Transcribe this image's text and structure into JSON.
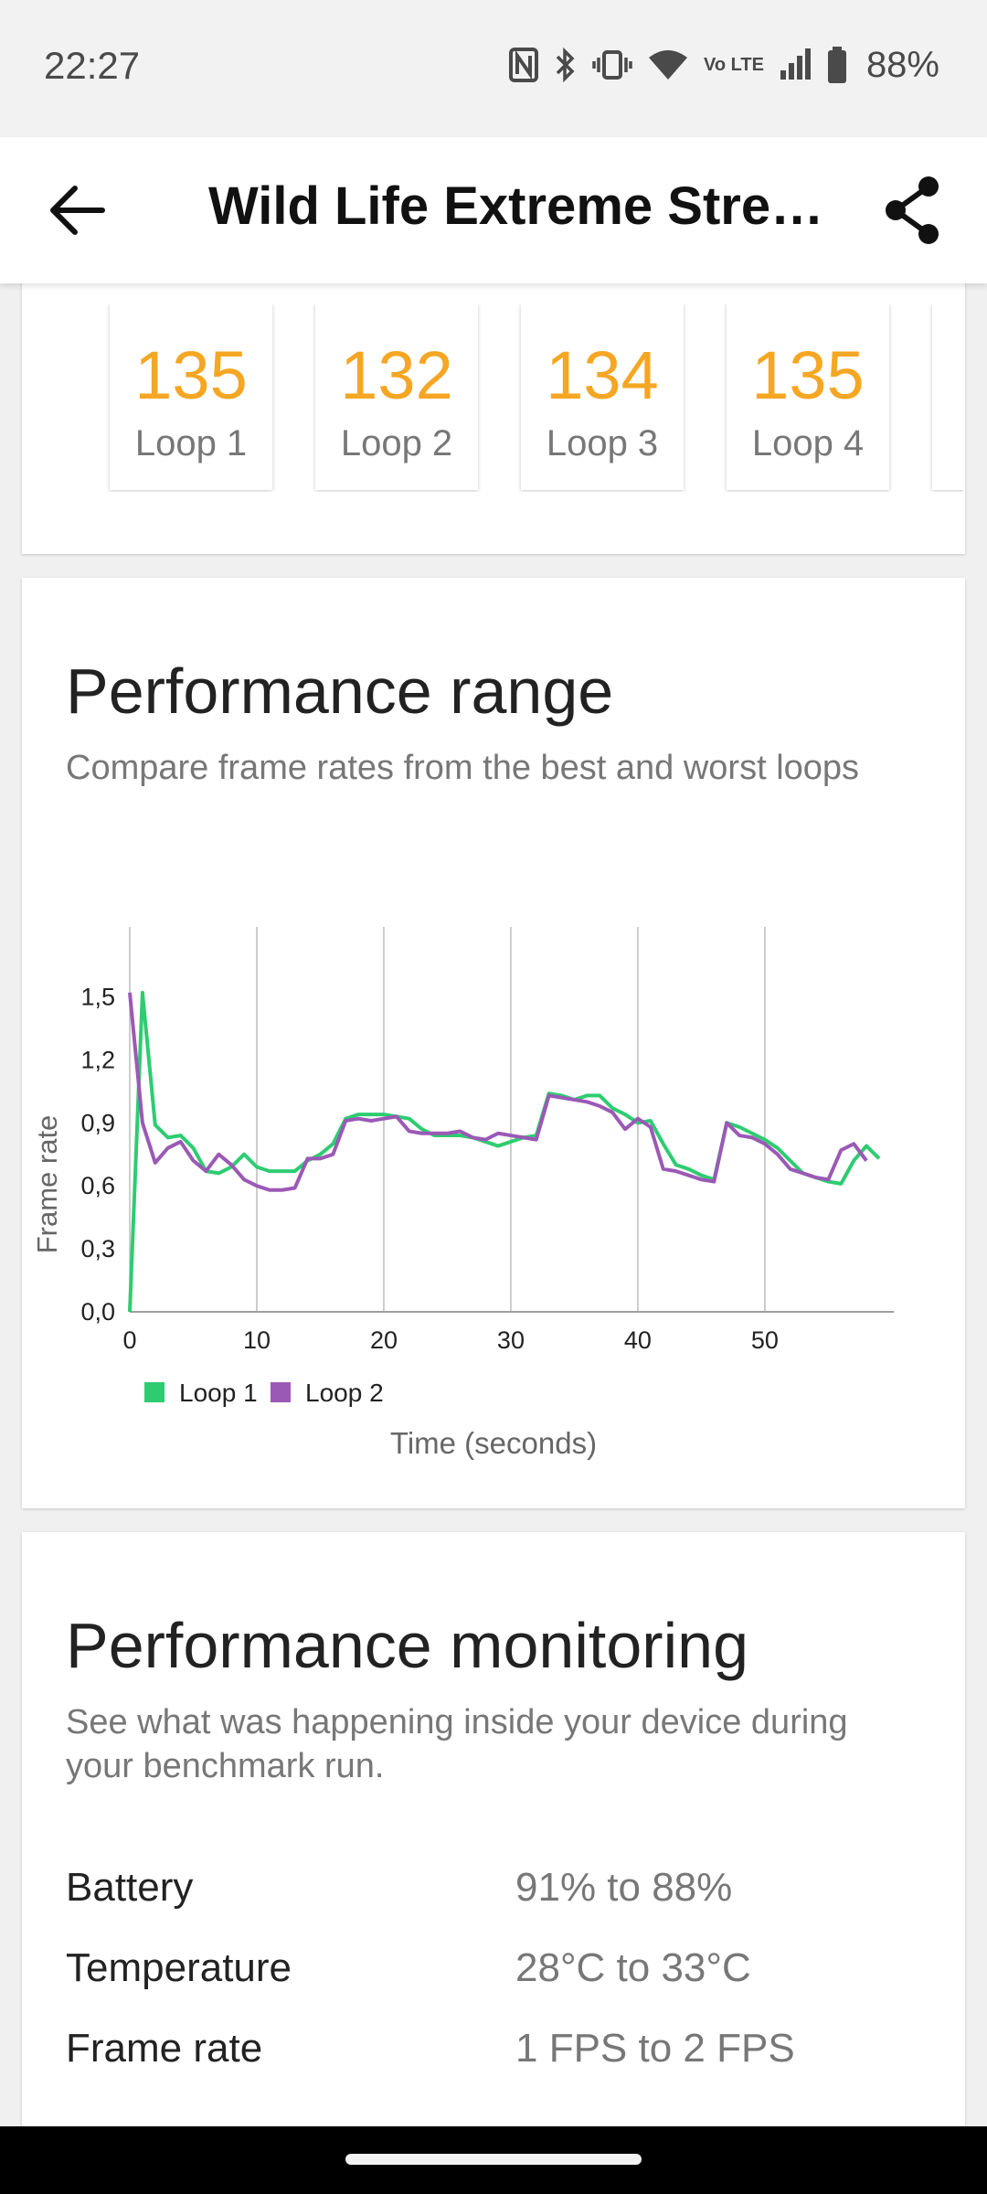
{
  "status_bar": {
    "time": "22:27",
    "battery": "88%",
    "network": "Vo LTE",
    "icons": [
      "nfc-icon",
      "bluetooth-icon",
      "vibrate-icon",
      "wifi-icon",
      "volte-icon",
      "signal-icon",
      "battery-icon"
    ]
  },
  "app_bar": {
    "title": "Wild Life Extreme Stress Test",
    "back_icon": "arrow-left-icon",
    "share_icon": "share-icon"
  },
  "loops": [
    {
      "score": "135",
      "label": "Loop 1"
    },
    {
      "score": "132",
      "label": "Loop 2"
    },
    {
      "score": "134",
      "label": "Loop 3"
    },
    {
      "score": "135",
      "label": "Loop 4"
    }
  ],
  "performance_range": {
    "title": "Performance range",
    "subtitle": "Compare frame rates from the best and worst loops"
  },
  "chart_data": {
    "type": "line",
    "ylabel": "Frame rate",
    "xlabel": "Time (seconds)",
    "xlim": [
      0,
      59
    ],
    "ylim": [
      0,
      1.65
    ],
    "x_ticks": [
      "0",
      "10",
      "20",
      "30",
      "40",
      "50"
    ],
    "y_ticks": [
      "0,0",
      "0,3",
      "0,6",
      "0,9",
      "1,2",
      "1,5"
    ],
    "grid": "vertical",
    "legend_position": "bottom-left",
    "series": [
      {
        "name": "Loop 1",
        "color": "#2ecc71",
        "x": [
          0,
          1,
          2,
          3,
          4,
          5,
          6,
          7,
          8,
          9,
          10,
          11,
          12,
          13,
          14,
          15,
          16,
          17,
          18,
          19,
          20,
          21,
          22,
          23,
          24,
          25,
          26,
          27,
          28,
          29,
          30,
          31,
          32,
          33,
          34,
          35,
          36,
          37,
          38,
          39,
          40,
          41,
          42,
          43,
          44,
          45,
          46,
          47,
          48,
          49,
          50,
          51,
          52,
          53,
          54,
          55,
          56,
          57,
          58,
          59
        ],
        "values": [
          0.0,
          1.52,
          0.89,
          0.83,
          0.84,
          0.78,
          0.67,
          0.66,
          0.69,
          0.75,
          0.69,
          0.67,
          0.67,
          0.67,
          0.72,
          0.75,
          0.8,
          0.92,
          0.94,
          0.94,
          0.94,
          0.93,
          0.92,
          0.87,
          0.84,
          0.84,
          0.84,
          0.83,
          0.81,
          0.79,
          0.81,
          0.83,
          0.84,
          1.04,
          1.03,
          1.01,
          1.03,
          1.03,
          0.97,
          0.94,
          0.9,
          0.91,
          0.8,
          0.7,
          0.68,
          0.65,
          0.63,
          0.9,
          0.88,
          0.85,
          0.82,
          0.78,
          0.72,
          0.66,
          0.64,
          0.62,
          0.61,
          0.72,
          0.79,
          0.73
        ]
      },
      {
        "name": "Loop 2",
        "color": "#9b59b6",
        "x": [
          0,
          1,
          2,
          3,
          4,
          5,
          6,
          7,
          8,
          9,
          10,
          11,
          12,
          13,
          14,
          15,
          16,
          17,
          18,
          19,
          20,
          21,
          22,
          23,
          24,
          25,
          26,
          27,
          28,
          29,
          30,
          31,
          32,
          33,
          34,
          35,
          36,
          37,
          38,
          39,
          40,
          41,
          42,
          43,
          44,
          45,
          46,
          47,
          48,
          49,
          50,
          51,
          52,
          53,
          54,
          55,
          56,
          57,
          58
        ],
        "values": [
          1.52,
          0.9,
          0.71,
          0.78,
          0.81,
          0.72,
          0.67,
          0.75,
          0.7,
          0.63,
          0.6,
          0.58,
          0.58,
          0.59,
          0.73,
          0.73,
          0.75,
          0.91,
          0.92,
          0.91,
          0.92,
          0.93,
          0.86,
          0.85,
          0.85,
          0.85,
          0.86,
          0.83,
          0.82,
          0.85,
          0.84,
          0.83,
          0.82,
          1.03,
          1.02,
          1.01,
          1.0,
          0.98,
          0.95,
          0.87,
          0.92,
          0.88,
          0.68,
          0.67,
          0.65,
          0.63,
          0.62,
          0.9,
          0.84,
          0.83,
          0.8,
          0.75,
          0.68,
          0.66,
          0.64,
          0.63,
          0.77,
          0.8,
          0.72
        ]
      }
    ]
  },
  "performance_monitoring": {
    "title": "Performance monitoring",
    "subtitle": "See what was happening inside your device during your benchmark run.",
    "rows": [
      {
        "label": "Battery",
        "value": "91% to 88%"
      },
      {
        "label": "Temperature",
        "value": "28°C to 33°C"
      },
      {
        "label": "Frame rate",
        "value": "1 FPS to 2 FPS"
      }
    ]
  }
}
